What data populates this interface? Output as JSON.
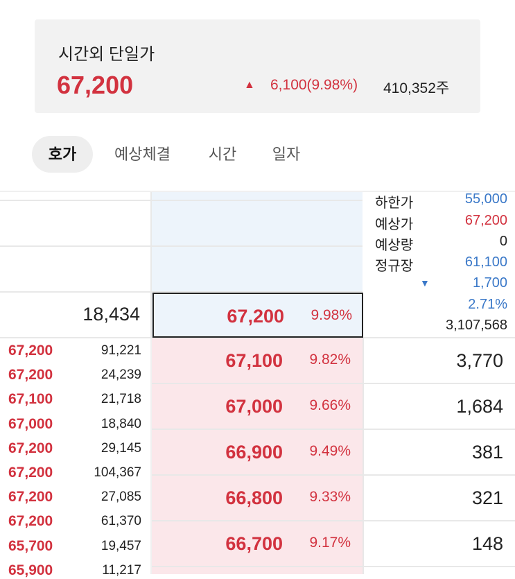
{
  "header": {
    "title": "시간외 단일가",
    "price": "67,200",
    "change": "6,100(9.98%)",
    "volume": "410,352주",
    "up_color": "#d2323f"
  },
  "tabs": [
    "호가",
    "예상체결",
    "시간",
    "일자"
  ],
  "current": {
    "ask_volume": "18,434",
    "price": "67,200",
    "percent": "9.98%"
  },
  "info": [
    {
      "label": "하한가",
      "value": "55,000",
      "color": "blue"
    },
    {
      "label": "예상가",
      "value": "67,200",
      "color": "red"
    },
    {
      "label": "예상량",
      "value": "0",
      "color": "black"
    },
    {
      "label": "정규장",
      "value": "61,100",
      "color": "blue"
    },
    {
      "label": "",
      "value": "1,700",
      "color": "blue"
    },
    {
      "label": "",
      "value": "2.71%",
      "color": "blue"
    },
    {
      "label": "",
      "value": "3,107,568",
      "color": "black"
    }
  ],
  "bids": [
    {
      "price": "67,100",
      "percent": "9.82%",
      "volume": "3,770"
    },
    {
      "price": "67,000",
      "percent": "9.66%",
      "volume": "1,684"
    },
    {
      "price": "66,900",
      "percent": "9.49%",
      "volume": "381"
    },
    {
      "price": "66,800",
      "percent": "9.33%",
      "volume": "321"
    },
    {
      "price": "66,700",
      "percent": "9.17%",
      "volume": "148"
    }
  ],
  "trades": [
    {
      "price": "67,200",
      "volume": "91,221"
    },
    {
      "price": "67,200",
      "volume": "24,239"
    },
    {
      "price": "67,100",
      "volume": "21,718"
    },
    {
      "price": "67,000",
      "volume": "18,840"
    },
    {
      "price": "67,200",
      "volume": "29,145"
    },
    {
      "price": "67,200",
      "volume": "104,367"
    },
    {
      "price": "67,200",
      "volume": "27,085"
    },
    {
      "price": "67,200",
      "volume": "61,370"
    },
    {
      "price": "65,700",
      "volume": "19,457"
    },
    {
      "price": "65,900",
      "volume": "11,217"
    }
  ]
}
